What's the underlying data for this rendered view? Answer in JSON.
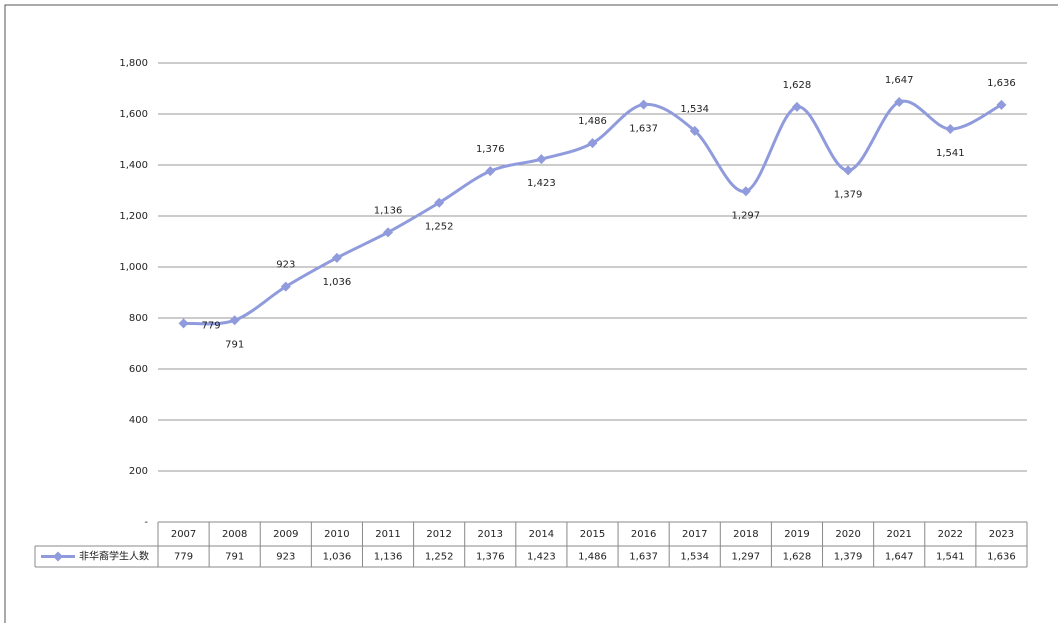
{
  "chart_data": {
    "type": "line",
    "categories": [
      "2007",
      "2008",
      "2009",
      "2010",
      "2011",
      "2012",
      "2013",
      "2014",
      "2015",
      "2016",
      "2017",
      "2018",
      "2019",
      "2020",
      "2021",
      "2022",
      "2023"
    ],
    "series": [
      {
        "name": "非华裔学生人数",
        "color": "#8f9bdc",
        "values": [
          779,
          791,
          923,
          1036,
          1136,
          1252,
          1376,
          1423,
          1486,
          1637,
          1534,
          1297,
          1628,
          1379,
          1647,
          1541,
          1636
        ],
        "value_labels": [
          "779",
          "791",
          "923",
          "1,036",
          "1,136",
          "1,252",
          "1,376",
          "1,423",
          "1,486",
          "1,637",
          "1,534",
          "1,297",
          "1,628",
          "1,379",
          "1,647",
          "1,541",
          "1,636"
        ]
      }
    ],
    "ylim": [
      0,
      1800
    ],
    "yticks": [
      {
        "value": 0,
        "label": "-"
      },
      200,
      400,
      600,
      800,
      {
        "value": 1000,
        "label": "1,000"
      },
      {
        "value": 1200,
        "label": "1,200"
      },
      {
        "value": 1400,
        "label": "1,400"
      },
      {
        "value": 1600,
        "label": "1,600"
      },
      {
        "value": 1800,
        "label": "1,800"
      }
    ],
    "grid": true,
    "smooth": true
  }
}
